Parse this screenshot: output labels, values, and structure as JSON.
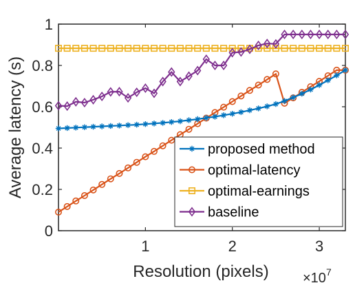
{
  "chart_data": {
    "type": "line",
    "title": "",
    "xlabel": "Resolution (pixels)",
    "ylabel": "Average latency (s)",
    "x_multiplier_label": "×10",
    "x_multiplier_exponent": "7",
    "xlim": [
      0,
      33000000
    ],
    "ylim": [
      0,
      1
    ],
    "x_ticks": [
      10000000,
      20000000,
      30000000
    ],
    "x_tick_labels": [
      "1",
      "2",
      "3"
    ],
    "y_ticks": [
      0,
      0.2,
      0.4,
      0.6,
      0.8,
      1
    ],
    "y_tick_labels": [
      "0",
      "0.2",
      "0.4",
      "0.6",
      "0.8",
      "1"
    ],
    "grid": false,
    "legend_position": "bottom-right",
    "x": [
      0,
      1000000,
      2000000,
      3000000,
      4000000,
      5000000,
      6000000,
      7000000,
      8000000,
      9000000,
      10000000,
      11000000,
      12000000,
      13000000,
      14000000,
      15000000,
      16000000,
      17000000,
      18000000,
      19000000,
      20000000,
      21000000,
      22000000,
      23000000,
      24000000,
      25000000,
      26000000,
      27000000,
      28000000,
      29000000,
      30000000,
      31000000,
      32000000,
      33000000
    ],
    "series": [
      {
        "name": "proposed method",
        "color": "#0072BD",
        "marker": "asterisk",
        "values": [
          0.495,
          0.497,
          0.499,
          0.501,
          0.503,
          0.505,
          0.507,
          0.509,
          0.511,
          0.513,
          0.516,
          0.519,
          0.522,
          0.526,
          0.53,
          0.535,
          0.54,
          0.546,
          0.552,
          0.559,
          0.566,
          0.574,
          0.583,
          0.592,
          0.602,
          0.613,
          0.628,
          0.645,
          0.663,
          0.683,
          0.705,
          0.728,
          0.752,
          0.777
        ]
      },
      {
        "name": "optimal-latency",
        "color": "#D95319",
        "marker": "circle",
        "values": [
          0.09,
          0.117,
          0.144,
          0.17,
          0.197,
          0.224,
          0.251,
          0.277,
          0.304,
          0.331,
          0.358,
          0.384,
          0.411,
          0.438,
          0.465,
          0.491,
          0.518,
          0.545,
          0.572,
          0.598,
          0.625,
          0.652,
          0.679,
          0.705,
          0.732,
          0.759,
          0.617,
          0.643,
          0.67,
          0.697,
          0.723,
          0.75,
          0.777,
          0.777
        ]
      },
      {
        "name": "optimal-earnings",
        "color": "#EDB120",
        "marker": "square",
        "values": [
          0.883,
          0.883,
          0.883,
          0.883,
          0.883,
          0.883,
          0.883,
          0.883,
          0.883,
          0.883,
          0.883,
          0.883,
          0.883,
          0.883,
          0.883,
          0.883,
          0.883,
          0.883,
          0.883,
          0.883,
          0.883,
          0.883,
          0.883,
          0.883,
          0.883,
          0.883,
          0.883,
          0.883,
          0.883,
          0.883,
          0.883,
          0.883,
          0.883,
          0.883
        ]
      },
      {
        "name": "baseline",
        "color": "#7E2F8E",
        "marker": "diamond",
        "values": [
          0.605,
          0.603,
          0.624,
          0.62,
          0.634,
          0.65,
          0.672,
          0.673,
          0.643,
          0.67,
          0.69,
          0.665,
          0.722,
          0.768,
          0.722,
          0.748,
          0.775,
          0.83,
          0.8,
          0.8,
          0.862,
          0.865,
          0.878,
          0.897,
          0.906,
          0.904,
          0.95,
          0.95,
          0.95,
          0.95,
          0.95,
          0.95,
          0.95,
          0.95
        ]
      }
    ]
  }
}
